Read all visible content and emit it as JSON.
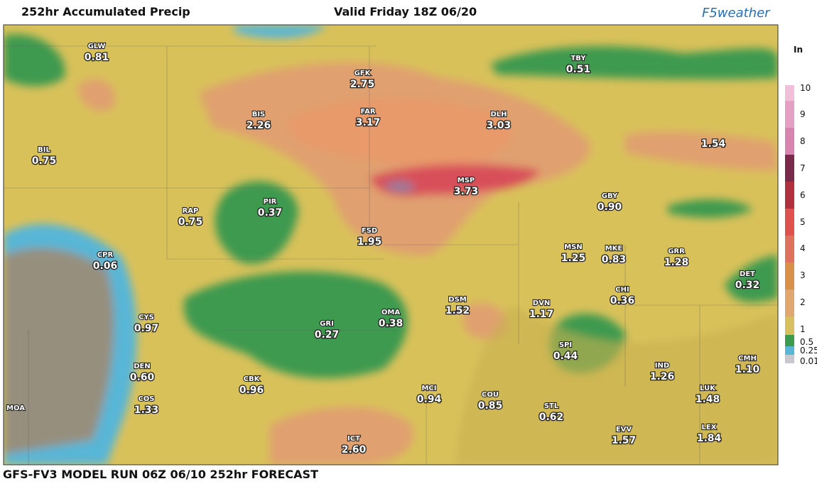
{
  "header": {
    "title": "252hr Accumulated Precip",
    "valid": "Valid Friday 18Z 06/20",
    "logo": "F5weather"
  },
  "footer": "GFS-FV3 MODEL RUN 06Z 06/10 252hr FORECAST",
  "legend": {
    "unit": "In",
    "ticks": [
      "10",
      "9",
      "8",
      "7",
      "6",
      "5",
      "4",
      "3",
      "2",
      "1",
      "0.5",
      "0.25",
      "0.01"
    ]
  },
  "stations": [
    {
      "code": "GLW",
      "value": "0.81"
    },
    {
      "code": "GFK",
      "value": "2.75"
    },
    {
      "code": "BIS",
      "value": "2.26"
    },
    {
      "code": "FAR",
      "value": "3.17"
    },
    {
      "code": "DLH",
      "value": "3.03"
    },
    {
      "code": "TBY",
      "value": "0.51"
    },
    {
      "code": "BIL",
      "value": "0.75"
    },
    {
      "code": "PIR",
      "value": "0.37"
    },
    {
      "code": "RAP",
      "value": "0.75"
    },
    {
      "code": "MSP",
      "value": "3.73"
    },
    {
      "code": "GBY",
      "value": "0.90"
    },
    {
      "value": "1.54"
    },
    {
      "code": "FSD",
      "value": "1.95"
    },
    {
      "code": "CPR",
      "value": "0.06"
    },
    {
      "code": "MSN",
      "value": "1.25"
    },
    {
      "code": "MKE",
      "value": "0.83"
    },
    {
      "code": "GRR",
      "value": "1.28"
    },
    {
      "code": "DET",
      "value": "0.32"
    },
    {
      "code": "CHI",
      "value": "0.36"
    },
    {
      "code": "CYS",
      "value": "0.97"
    },
    {
      "code": "GRI",
      "value": "0.27"
    },
    {
      "code": "OMA",
      "value": "0.38"
    },
    {
      "code": "DSM",
      "value": "1.52"
    },
    {
      "code": "DVN",
      "value": "1.17"
    },
    {
      "code": "SPI",
      "value": "0.44"
    },
    {
      "code": "IND",
      "value": "1.26"
    },
    {
      "code": "CMH",
      "value": "1.10"
    },
    {
      "code": "DEN",
      "value": "0.60"
    },
    {
      "code": "CBK",
      "value": "0.96"
    },
    {
      "code": "COS",
      "value": "1.33"
    },
    {
      "code": "MCI",
      "value": "0.94"
    },
    {
      "code": "COU",
      "value": "0.85"
    },
    {
      "code": "STL",
      "value": "0.62"
    },
    {
      "code": "LUK",
      "value": "1.48"
    },
    {
      "code": "MOA"
    },
    {
      "code": "EVV",
      "value": "1.57"
    },
    {
      "code": "LEX",
      "value": "1.84"
    },
    {
      "code": "ICT",
      "value": "2.60"
    }
  ]
}
